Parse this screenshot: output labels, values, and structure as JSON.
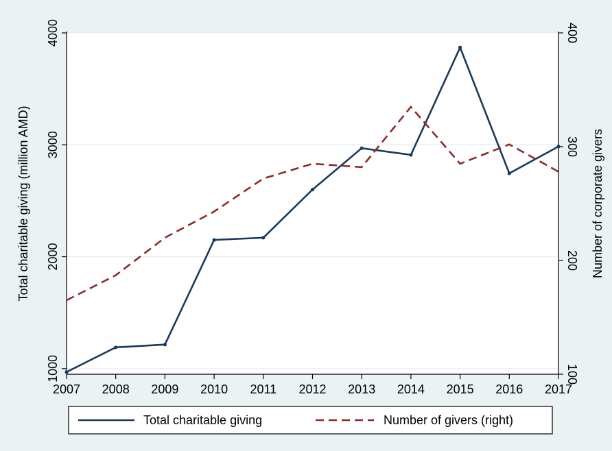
{
  "chart_data": {
    "type": "line",
    "x": [
      2007,
      2008,
      2009,
      2010,
      2011,
      2012,
      2013,
      2014,
      2015,
      2016,
      2017
    ],
    "xlim": [
      2007,
      2017
    ],
    "left_axis": {
      "label": "Total charitable giving (million AMD)",
      "ticks": [
        1000,
        2000,
        3000,
        4000
      ],
      "ylim": [
        950,
        4000
      ]
    },
    "right_axis": {
      "label": "Number of corporate givers",
      "ticks": [
        100,
        200,
        300,
        400
      ],
      "ylim": [
        100,
        400
      ]
    },
    "series": [
      {
        "name": "Total charitable giving",
        "axis": "left",
        "color": "#1a3a5c",
        "style": "solid",
        "values": [
          970,
          1190,
          1215,
          2150,
          2170,
          2600,
          2970,
          2910,
          3870,
          2745,
          2985
        ]
      },
      {
        "name": "Number of givers (right)",
        "axis": "right",
        "color": "#8b2a2a",
        "style": "dashed",
        "values": [
          165,
          187,
          220,
          243,
          272,
          285,
          282,
          335,
          285,
          302,
          278
        ]
      }
    ],
    "grid": true,
    "legend_position": "bottom",
    "background_color": "#eaf2f3",
    "plot_background_color": "#ffffff"
  }
}
